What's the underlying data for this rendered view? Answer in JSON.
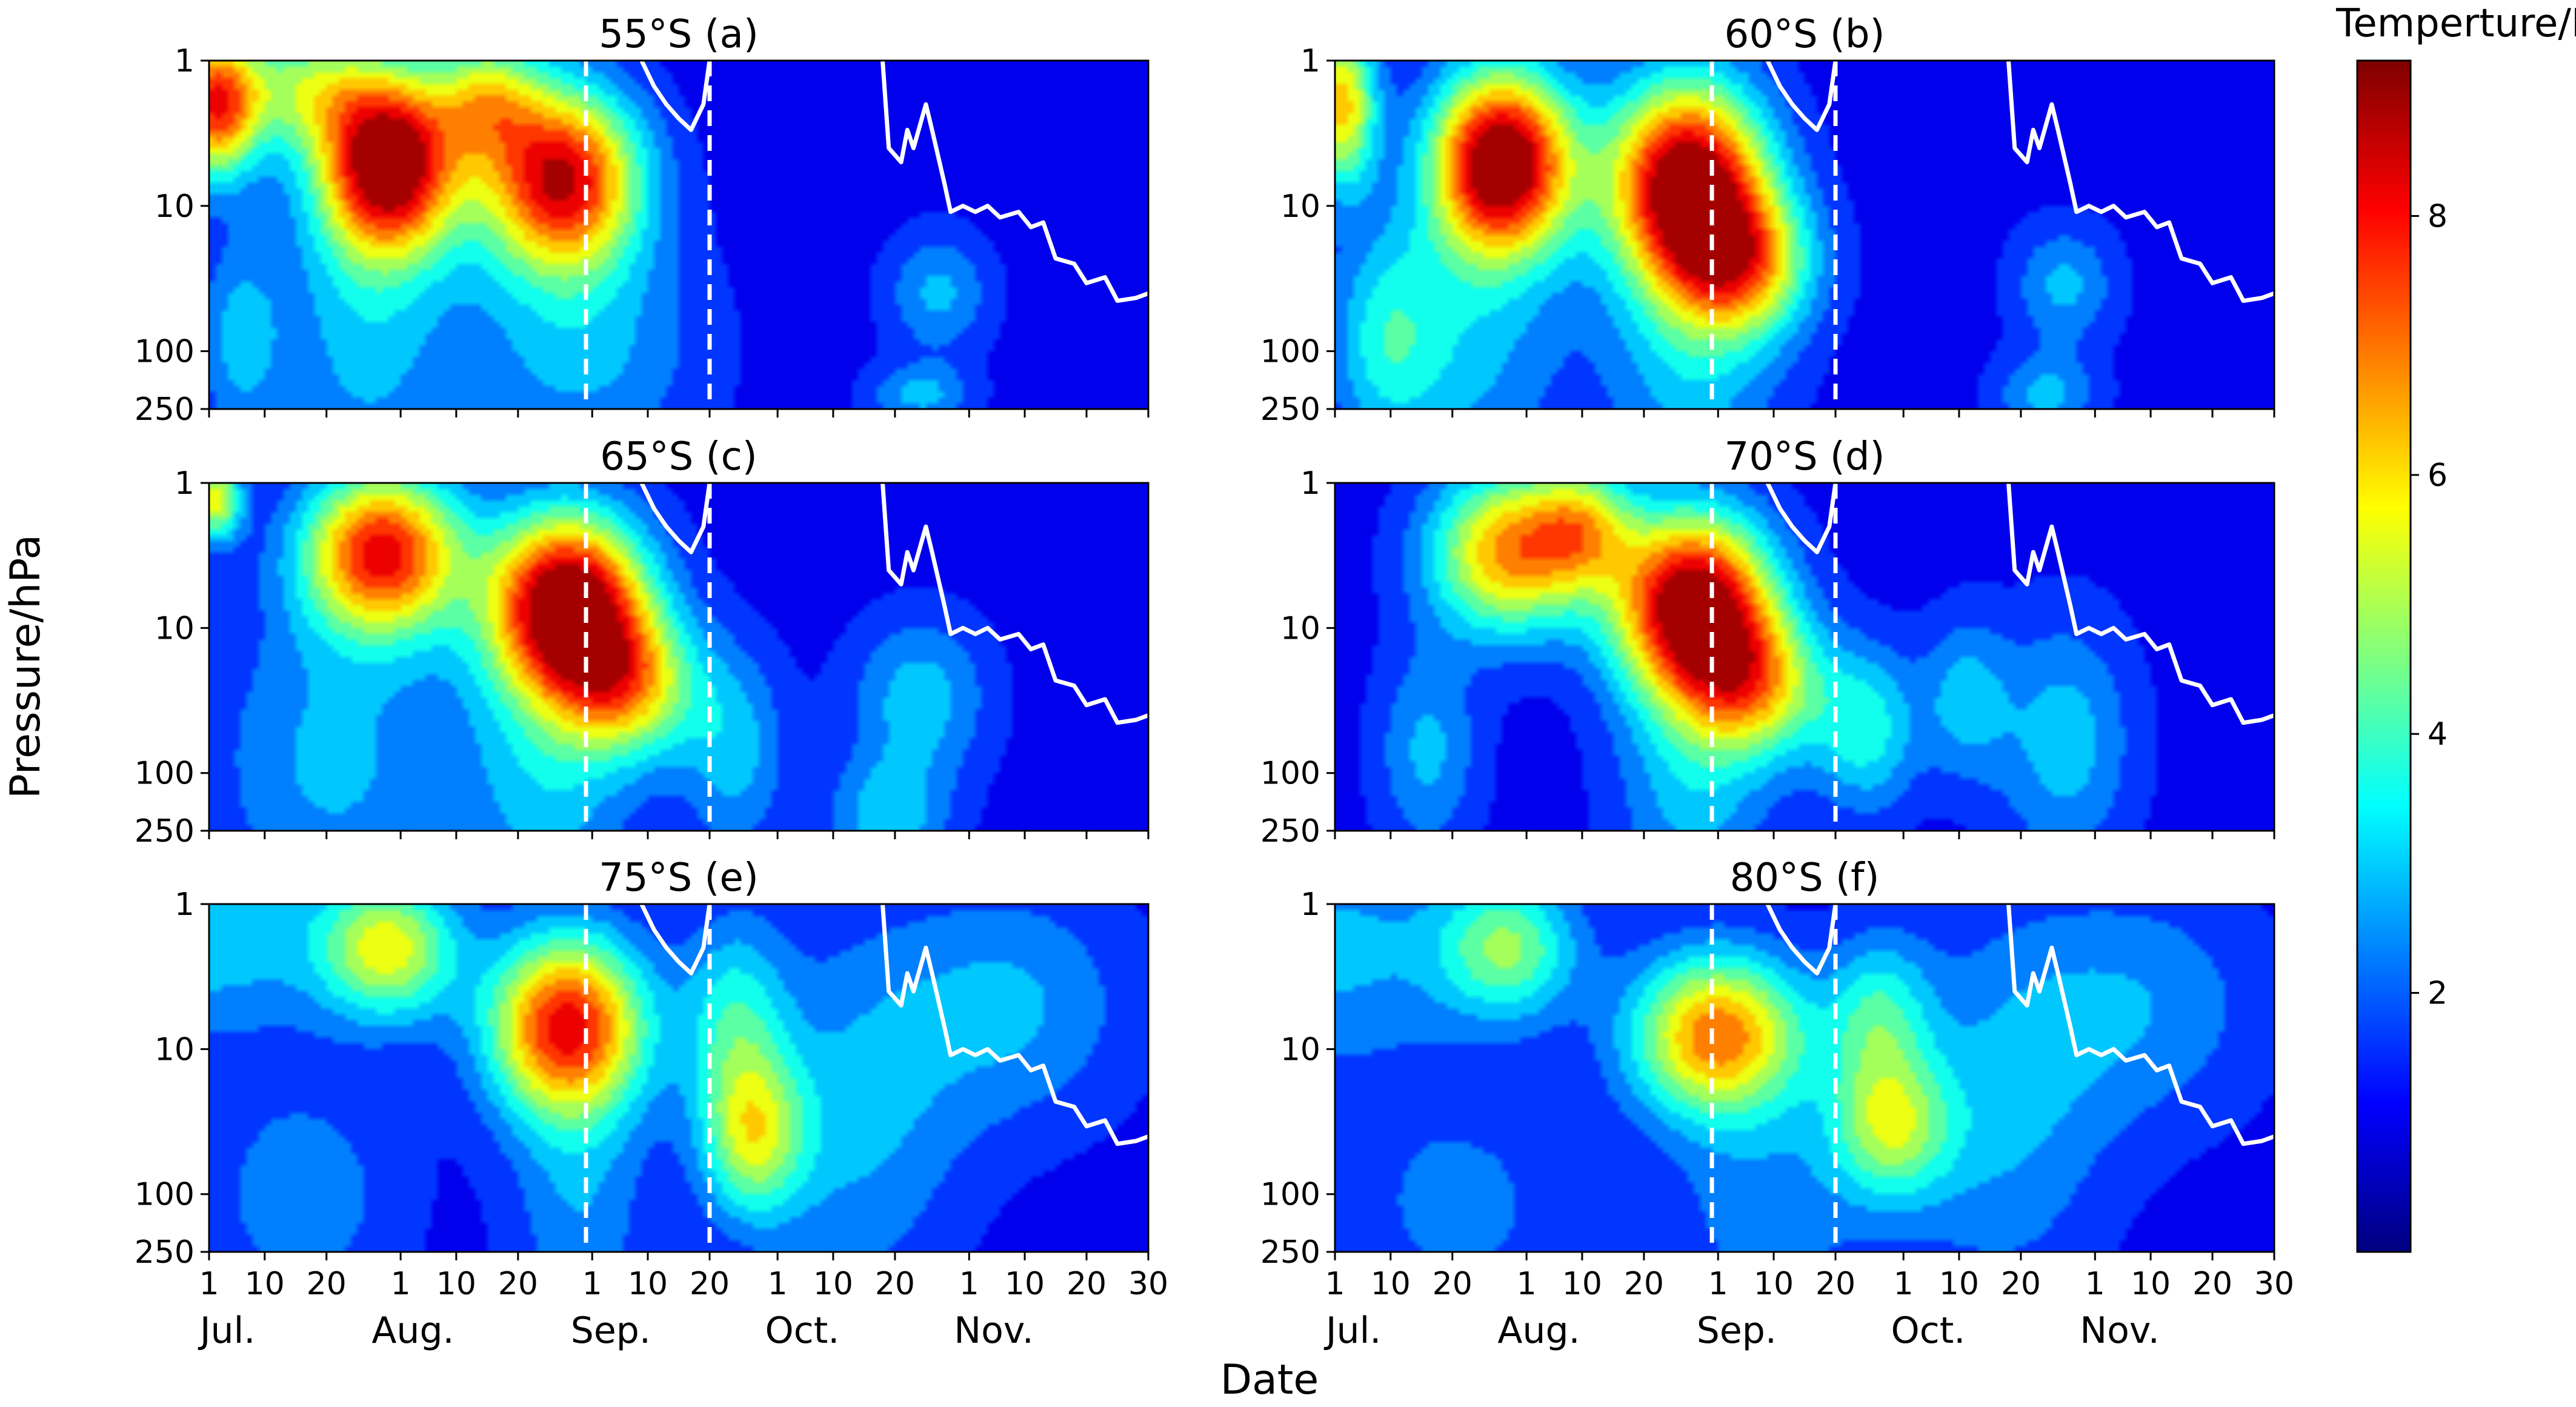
{
  "chart_data": {
    "type": "heatmap",
    "figure": {
      "xlabel": "Date",
      "ylabel": "Pressure/hPa",
      "colorbar_label": "Temperture/K",
      "colorbar_ticks": [
        2,
        4,
        6,
        8
      ],
      "colorbar_range": [
        0,
        9.2
      ],
      "colormap": [
        "#00007f",
        "#0000ff",
        "#007fff",
        "#00ffff",
        "#7fff7f",
        "#ffff00",
        "#ff7f00",
        "#ff0000",
        "#7f0000"
      ]
    },
    "x_axis": {
      "range_days": [
        0,
        152
      ],
      "tick_days": [
        0,
        9,
        19,
        31,
        40,
        50,
        62,
        71,
        81,
        92,
        101,
        111,
        123,
        132,
        142,
        152
      ],
      "tick_labels": [
        "1",
        "10",
        "20",
        "1",
        "10",
        "20",
        "1",
        "10",
        "20",
        "1",
        "10",
        "20",
        "1",
        "10",
        "20",
        "30"
      ],
      "month_labels": [
        "Jul.",
        "Aug.",
        "Sep.",
        "Oct.",
        "Nov."
      ],
      "month_centers": [
        3,
        33,
        65,
        96,
        127
      ]
    },
    "y_axis": {
      "scale": "log",
      "range": [
        1,
        250
      ],
      "tick_values": [
        1,
        10,
        100,
        250
      ],
      "tick_labels": [
        "1",
        "10",
        "100",
        "250"
      ]
    },
    "vertical_lines_days": [
      61,
      81
    ],
    "tropopause_line": [
      [
        70,
        1
      ],
      [
        72,
        1.5
      ],
      [
        74,
        2
      ],
      [
        76,
        2.5
      ],
      [
        78,
        3
      ],
      [
        80,
        2
      ],
      [
        81,
        1
      ],
      [
        null,
        null
      ],
      [
        109,
        1
      ],
      [
        110,
        4
      ],
      [
        112,
        5
      ],
      [
        113,
        3
      ],
      [
        114,
        4
      ],
      [
        116,
        2
      ],
      [
        117,
        3
      ],
      [
        119,
        7
      ],
      [
        120,
        11
      ],
      [
        122,
        10
      ],
      [
        124,
        11
      ],
      [
        126,
        10
      ],
      [
        128,
        12
      ],
      [
        131,
        11
      ],
      [
        133,
        14
      ],
      [
        135,
        13
      ],
      [
        137,
        23
      ],
      [
        140,
        25
      ],
      [
        142,
        34
      ],
      [
        145,
        31
      ],
      [
        147,
        45
      ],
      [
        150,
        43
      ],
      [
        152,
        40
      ]
    ],
    "panels": [
      {
        "title": "55°S (a)",
        "blobs": [
          {
            "day": 1,
            "p": 2,
            "sd": 5,
            "sp": 0.35,
            "amp": 6.5
          },
          {
            "day": 29,
            "p": 5,
            "sd": 8,
            "sp": 0.45,
            "amp": 8.5
          },
          {
            "day": 57,
            "p": 6.5,
            "sd": 9,
            "sp": 0.45,
            "amp": 7.5
          },
          {
            "day": 45,
            "p": 1.8,
            "sd": 6,
            "sp": 0.3,
            "amp": 3.5
          },
          {
            "day": 15,
            "p": 1.5,
            "sd": 8,
            "sp": 0.3,
            "amp": 3.2
          },
          {
            "day": 25,
            "p": 80,
            "sd": 10,
            "sp": 0.8,
            "amp": 1.8
          },
          {
            "day": 60,
            "p": 100,
            "sd": 14,
            "sp": 0.6,
            "amp": 1.8
          },
          {
            "day": 118,
            "p": 40,
            "sd": 6,
            "sp": 0.3,
            "amp": 1.8
          },
          {
            "day": 115,
            "p": 200,
            "sd": 6,
            "sp": 0.15,
            "amp": 1.8
          },
          {
            "day": 5,
            "p": 80,
            "sd": 5,
            "sp": 0.5,
            "amp": 1.8
          }
        ]
      },
      {
        "title": "60°S (b)",
        "blobs": [
          {
            "day": 1,
            "p": 2,
            "sd": 4,
            "sp": 0.4,
            "amp": 5.2
          },
          {
            "day": 27,
            "p": 5,
            "sd": 8,
            "sp": 0.45,
            "amp": 8.8
          },
          {
            "day": 57,
            "p": 7,
            "sd": 9,
            "sp": 0.5,
            "amp": 8.6
          },
          {
            "day": 66,
            "p": 25,
            "sd": 8,
            "sp": 0.35,
            "amp": 4.5
          },
          {
            "day": 20,
            "p": 90,
            "sd": 12,
            "sp": 0.7,
            "amp": 1.9
          },
          {
            "day": 58,
            "p": 130,
            "sd": 10,
            "sp": 0.6,
            "amp": 1.9
          },
          {
            "day": 118,
            "p": 35,
            "sd": 6,
            "sp": 0.3,
            "amp": 1.8
          },
          {
            "day": 115,
            "p": 200,
            "sd": 6,
            "sp": 0.2,
            "amp": 1.8
          },
          {
            "day": 8,
            "p": 80,
            "sd": 6,
            "sp": 0.5,
            "amp": 1.8
          }
        ]
      },
      {
        "title": "65°S (c)",
        "blobs": [
          {
            "day": 1,
            "p": 1.3,
            "sd": 3,
            "sp": 0.2,
            "amp": 4.5
          },
          {
            "day": 28,
            "p": 3,
            "sd": 9,
            "sp": 0.4,
            "amp": 7.0
          },
          {
            "day": 58,
            "p": 7,
            "sd": 9,
            "sp": 0.45,
            "amp": 8.8
          },
          {
            "day": 68,
            "p": 25,
            "sd": 8,
            "sp": 0.35,
            "amp": 4.2
          },
          {
            "day": 20,
            "p": 80,
            "sd": 14,
            "sp": 0.8,
            "amp": 1.8
          },
          {
            "day": 55,
            "p": 120,
            "sd": 10,
            "sp": 0.7,
            "amp": 1.9
          },
          {
            "day": 115,
            "p": 30,
            "sd": 8,
            "sp": 0.4,
            "amp": 2.0
          },
          {
            "day": 110,
            "p": 200,
            "sd": 7,
            "sp": 0.3,
            "amp": 2.0
          },
          {
            "day": 85,
            "p": 70,
            "sd": 6,
            "sp": 0.5,
            "amp": 1.9
          }
        ]
      },
      {
        "title": "70°S (d)",
        "blobs": [
          {
            "day": 28,
            "p": 3,
            "sd": 9,
            "sp": 0.4,
            "amp": 5.6
          },
          {
            "day": 58,
            "p": 7,
            "sd": 9,
            "sp": 0.45,
            "amp": 8.6
          },
          {
            "day": 68,
            "p": 25,
            "sd": 8,
            "sp": 0.35,
            "amp": 4.2
          },
          {
            "day": 40,
            "p": 2,
            "sd": 6,
            "sp": 0.3,
            "amp": 3.5
          },
          {
            "day": 15,
            "p": 70,
            "sd": 6,
            "sp": 0.5,
            "amp": 1.8
          },
          {
            "day": 58,
            "p": 120,
            "sd": 9,
            "sp": 0.6,
            "amp": 1.9
          },
          {
            "day": 86,
            "p": 50,
            "sd": 6,
            "sp": 0.4,
            "amp": 2.6
          },
          {
            "day": 118,
            "p": 60,
            "sd": 8,
            "sp": 0.6,
            "amp": 2.0
          },
          {
            "day": 102,
            "p": 30,
            "sd": 5,
            "sp": 0.4,
            "amp": 1.8
          }
        ]
      },
      {
        "title": "75°S (e)",
        "blobs": [
          {
            "day": 0,
            "p": 1.5,
            "sd": 14,
            "sp": 0.5,
            "amp": 2.2
          },
          {
            "day": 29,
            "p": 2,
            "sd": 8,
            "sp": 0.35,
            "amp": 4.5
          },
          {
            "day": 58,
            "p": 7,
            "sd": 9,
            "sp": 0.45,
            "amp": 7.2
          },
          {
            "day": 88,
            "p": 40,
            "sd": 6,
            "sp": 0.4,
            "amp": 3.8
          },
          {
            "day": 85,
            "p": 6,
            "sd": 6,
            "sp": 0.5,
            "amp": 2.4
          },
          {
            "day": 105,
            "p": 30,
            "sd": 12,
            "sp": 0.9,
            "amp": 1.7
          },
          {
            "day": 130,
            "p": 5,
            "sd": 14,
            "sp": 0.6,
            "amp": 1.7
          },
          {
            "day": 15,
            "p": 100,
            "sd": 12,
            "sp": 0.6,
            "amp": 1.4
          },
          {
            "day": 60,
            "p": 130,
            "sd": 8,
            "sp": 0.6,
            "amp": 1.5
          }
        ]
      },
      {
        "title": "80°S (f)",
        "blobs": [
          {
            "day": 0,
            "p": 2,
            "sd": 15,
            "sp": 0.6,
            "amp": 1.8
          },
          {
            "day": 28,
            "p": 2,
            "sd": 8,
            "sp": 0.35,
            "amp": 3.5
          },
          {
            "day": 62,
            "p": 8,
            "sd": 10,
            "sp": 0.4,
            "amp": 6.0
          },
          {
            "day": 90,
            "p": 35,
            "sd": 7,
            "sp": 0.35,
            "amp": 3.5
          },
          {
            "day": 88,
            "p": 6,
            "sd": 6,
            "sp": 0.4,
            "amp": 2.6
          },
          {
            "day": 108,
            "p": 30,
            "sd": 12,
            "sp": 0.9,
            "amp": 1.6
          },
          {
            "day": 130,
            "p": 5,
            "sd": 15,
            "sp": 0.6,
            "amp": 1.5
          },
          {
            "day": 20,
            "p": 120,
            "sd": 14,
            "sp": 0.6,
            "amp": 1.2
          },
          {
            "day": 70,
            "p": 130,
            "sd": 12,
            "sp": 0.6,
            "amp": 1.3
          }
        ]
      }
    ]
  }
}
